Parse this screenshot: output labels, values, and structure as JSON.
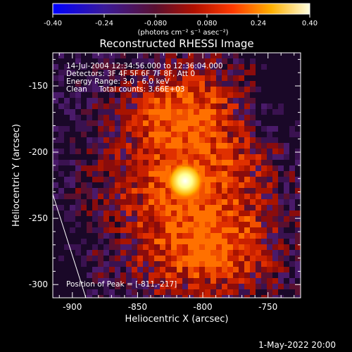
{
  "chart_data": {
    "type": "heatmap",
    "title": "Reconstructed RHESSI Image",
    "xlabel": "Heliocentric X (arcsec)",
    "ylabel": "Heliocentric Y (arcsec)",
    "xlim": [
      -915,
      -725
    ],
    "ylim": [
      -310,
      -125
    ],
    "xticks": [
      -900,
      -850,
      -800,
      -750
    ],
    "xtick_labels": [
      "-900",
      "-850",
      "-800",
      "-750"
    ],
    "yticks": [
      -150,
      -200,
      -250,
      -300
    ],
    "ytick_labels": [
      "-150",
      "-200",
      "-250",
      "-300"
    ],
    "colorbar": {
      "range": [
        -0.4,
        0.4
      ],
      "ticks": [
        -0.4,
        -0.24,
        -0.08,
        0.08,
        0.24,
        0.4
      ],
      "tick_labels": [
        "-0.40",
        "-0.24",
        "-0.080",
        "0.080",
        "0.24",
        "0.40"
      ],
      "unit_label": "(photons cm⁻² s⁻¹ asec⁻²)",
      "colors": [
        "#0000ff",
        "#5a2a8a",
        "#8a1010",
        "#ff2a00",
        "#ffaa00",
        "#ffff88",
        "#ffffff"
      ]
    },
    "annotations": [
      "14-Jul-2004 12:34:56.000 to 12:36:04.000",
      "Detectors: 3F 4F 5F 6F 7F 8F, Att 0",
      "Energy Range: 3.0 - 6.0 keV",
      "Clean     Total counts: 3.66E+03"
    ],
    "peak_label": "Position of Peak = [-811,-217]",
    "peak": [
      -811,
      -217
    ],
    "footer": "1-May-2022 20:00"
  }
}
